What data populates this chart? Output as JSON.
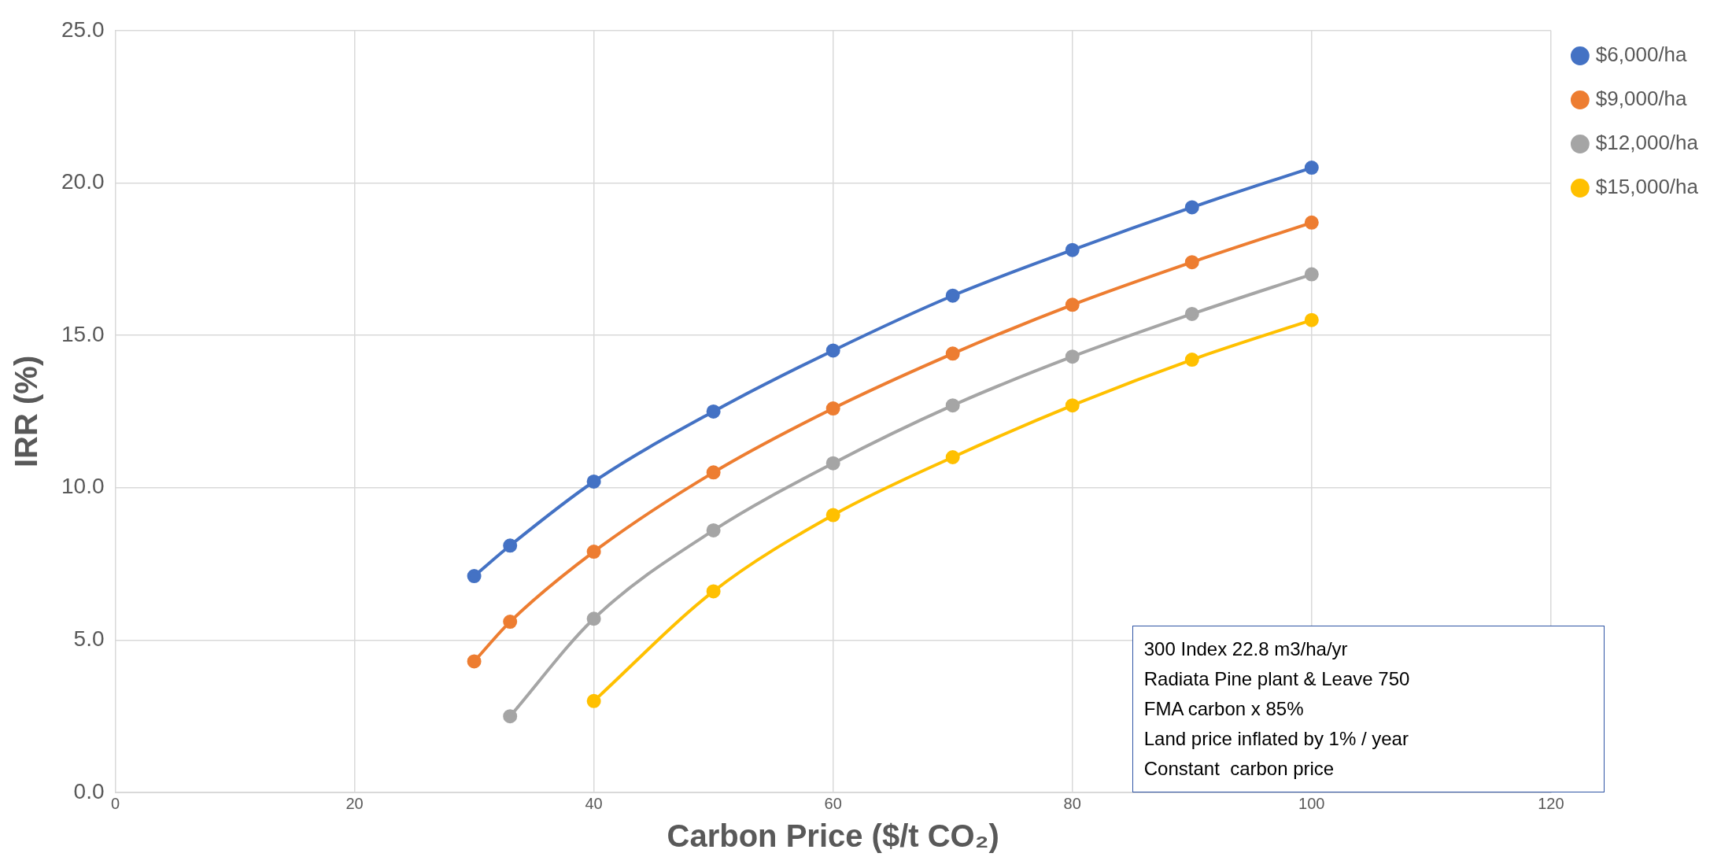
{
  "chart_data": {
    "type": "line",
    "xlabel": "Carbon Price ($/t CO₂)",
    "ylabel": "IRR (%)",
    "xlim": [
      0,
      120
    ],
    "xticks": [
      0,
      20,
      40,
      60,
      80,
      100,
      120
    ],
    "ylim": [
      0,
      25
    ],
    "yticks": [
      {
        "value": 0,
        "label": "0.0"
      },
      {
        "value": 5,
        "label": "5.0"
      },
      {
        "value": 10,
        "label": "10.0"
      },
      {
        "value": 15,
        "label": "15.0"
      },
      {
        "value": 20,
        "label": "20.0"
      },
      {
        "value": 25,
        "label": "25.0"
      }
    ],
    "grid": true,
    "legend": "right",
    "marker": "circle",
    "line_style": "solid",
    "series": [
      {
        "name": "$6,000/ha",
        "color": "#4472c4",
        "x": [
          30,
          33,
          40,
          50,
          60,
          70,
          80,
          90,
          100
        ],
        "values": [
          7.1,
          8.1,
          10.2,
          12.5,
          14.5,
          16.3,
          17.8,
          19.2,
          20.5
        ]
      },
      {
        "name": "$9,000/ha",
        "color": "#ed7d31",
        "x": [
          30,
          33,
          40,
          50,
          60,
          70,
          80,
          90,
          100
        ],
        "values": [
          4.3,
          5.6,
          7.9,
          10.5,
          12.6,
          14.4,
          16.0,
          17.4,
          18.7
        ]
      },
      {
        "name": "$12,000/ha",
        "color": "#a5a5a5",
        "x": [
          33,
          40,
          50,
          60,
          70,
          80,
          90,
          100
        ],
        "values": [
          2.5,
          5.7,
          8.6,
          10.8,
          12.7,
          14.3,
          15.7,
          17.0
        ]
      },
      {
        "name": "$15,000/ha",
        "color": "#ffc000",
        "x": [
          40,
          50,
          60,
          70,
          80,
          90,
          100
        ],
        "values": [
          3.0,
          6.6,
          9.1,
          11.0,
          12.7,
          14.2,
          15.5
        ]
      }
    ],
    "annotations": [
      "300 Index 22.8 m3/ha/yr",
      "Radiata Pine plant & Leave 750",
      "FMA carbon x 85%",
      "Land price inflated by 1% / year",
      "Constant  carbon price"
    ]
  }
}
